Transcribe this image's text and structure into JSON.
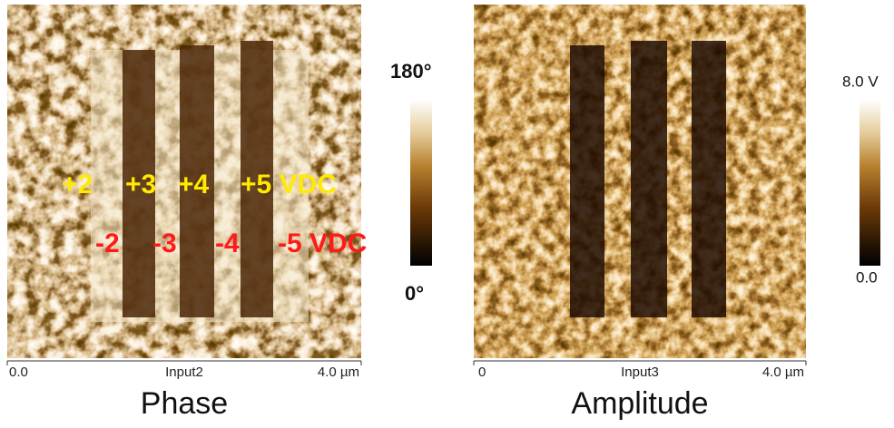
{
  "panels": [
    {
      "title": "Phase",
      "x_axis": {
        "start": "0.0",
        "label": "Input2",
        "end": "4.0 µm"
      },
      "colorbar": {
        "max": "180°",
        "min": "0°"
      },
      "annotations": {
        "positive": [
          "+2",
          "+3",
          "+4",
          "+5 VDC"
        ],
        "negative": [
          "-2",
          "-3",
          "-4",
          "-5 VDC"
        ]
      }
    },
    {
      "title": "Amplitude",
      "x_axis": {
        "start": "0",
        "label": "Input3",
        "end": "4.0 µm"
      },
      "colorbar": {
        "max": "8.0 V",
        "min": "0.0"
      }
    }
  ]
}
